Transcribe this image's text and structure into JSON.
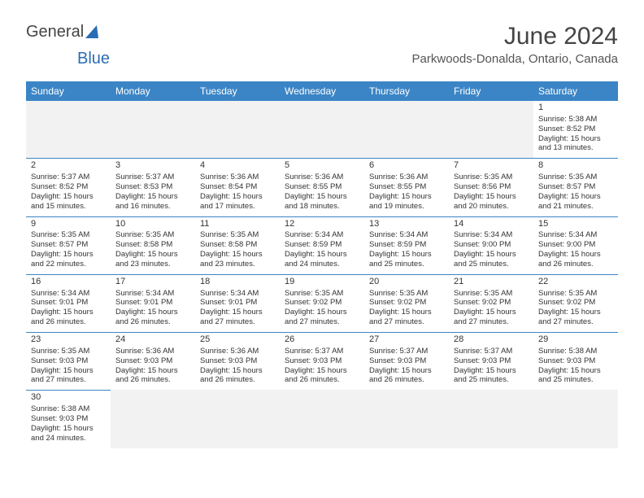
{
  "brand": {
    "part1": "General",
    "part2": "Blue"
  },
  "header": {
    "title": "June 2024",
    "location": "Parkwoods-Donalda, Ontario, Canada"
  },
  "colors": {
    "header_bg": "#3b85c6",
    "header_fg": "#ffffff",
    "rule": "#3b85c6",
    "text": "#333333",
    "empty_bg": "#f2f2f2",
    "page_bg": "#ffffff"
  },
  "weekdays": [
    "Sunday",
    "Monday",
    "Tuesday",
    "Wednesday",
    "Thursday",
    "Friday",
    "Saturday"
  ],
  "weeks": [
    [
      null,
      null,
      null,
      null,
      null,
      null,
      {
        "n": "1",
        "sr": "Sunrise: 5:38 AM",
        "ss": "Sunset: 8:52 PM",
        "d1": "Daylight: 15 hours",
        "d2": "and 13 minutes."
      }
    ],
    [
      {
        "n": "2",
        "sr": "Sunrise: 5:37 AM",
        "ss": "Sunset: 8:52 PM",
        "d1": "Daylight: 15 hours",
        "d2": "and 15 minutes."
      },
      {
        "n": "3",
        "sr": "Sunrise: 5:37 AM",
        "ss": "Sunset: 8:53 PM",
        "d1": "Daylight: 15 hours",
        "d2": "and 16 minutes."
      },
      {
        "n": "4",
        "sr": "Sunrise: 5:36 AM",
        "ss": "Sunset: 8:54 PM",
        "d1": "Daylight: 15 hours",
        "d2": "and 17 minutes."
      },
      {
        "n": "5",
        "sr": "Sunrise: 5:36 AM",
        "ss": "Sunset: 8:55 PM",
        "d1": "Daylight: 15 hours",
        "d2": "and 18 minutes."
      },
      {
        "n": "6",
        "sr": "Sunrise: 5:36 AM",
        "ss": "Sunset: 8:55 PM",
        "d1": "Daylight: 15 hours",
        "d2": "and 19 minutes."
      },
      {
        "n": "7",
        "sr": "Sunrise: 5:35 AM",
        "ss": "Sunset: 8:56 PM",
        "d1": "Daylight: 15 hours",
        "d2": "and 20 minutes."
      },
      {
        "n": "8",
        "sr": "Sunrise: 5:35 AM",
        "ss": "Sunset: 8:57 PM",
        "d1": "Daylight: 15 hours",
        "d2": "and 21 minutes."
      }
    ],
    [
      {
        "n": "9",
        "sr": "Sunrise: 5:35 AM",
        "ss": "Sunset: 8:57 PM",
        "d1": "Daylight: 15 hours",
        "d2": "and 22 minutes."
      },
      {
        "n": "10",
        "sr": "Sunrise: 5:35 AM",
        "ss": "Sunset: 8:58 PM",
        "d1": "Daylight: 15 hours",
        "d2": "and 23 minutes."
      },
      {
        "n": "11",
        "sr": "Sunrise: 5:35 AM",
        "ss": "Sunset: 8:58 PM",
        "d1": "Daylight: 15 hours",
        "d2": "and 23 minutes."
      },
      {
        "n": "12",
        "sr": "Sunrise: 5:34 AM",
        "ss": "Sunset: 8:59 PM",
        "d1": "Daylight: 15 hours",
        "d2": "and 24 minutes."
      },
      {
        "n": "13",
        "sr": "Sunrise: 5:34 AM",
        "ss": "Sunset: 8:59 PM",
        "d1": "Daylight: 15 hours",
        "d2": "and 25 minutes."
      },
      {
        "n": "14",
        "sr": "Sunrise: 5:34 AM",
        "ss": "Sunset: 9:00 PM",
        "d1": "Daylight: 15 hours",
        "d2": "and 25 minutes."
      },
      {
        "n": "15",
        "sr": "Sunrise: 5:34 AM",
        "ss": "Sunset: 9:00 PM",
        "d1": "Daylight: 15 hours",
        "d2": "and 26 minutes."
      }
    ],
    [
      {
        "n": "16",
        "sr": "Sunrise: 5:34 AM",
        "ss": "Sunset: 9:01 PM",
        "d1": "Daylight: 15 hours",
        "d2": "and 26 minutes."
      },
      {
        "n": "17",
        "sr": "Sunrise: 5:34 AM",
        "ss": "Sunset: 9:01 PM",
        "d1": "Daylight: 15 hours",
        "d2": "and 26 minutes."
      },
      {
        "n": "18",
        "sr": "Sunrise: 5:34 AM",
        "ss": "Sunset: 9:01 PM",
        "d1": "Daylight: 15 hours",
        "d2": "and 27 minutes."
      },
      {
        "n": "19",
        "sr": "Sunrise: 5:35 AM",
        "ss": "Sunset: 9:02 PM",
        "d1": "Daylight: 15 hours",
        "d2": "and 27 minutes."
      },
      {
        "n": "20",
        "sr": "Sunrise: 5:35 AM",
        "ss": "Sunset: 9:02 PM",
        "d1": "Daylight: 15 hours",
        "d2": "and 27 minutes."
      },
      {
        "n": "21",
        "sr": "Sunrise: 5:35 AM",
        "ss": "Sunset: 9:02 PM",
        "d1": "Daylight: 15 hours",
        "d2": "and 27 minutes."
      },
      {
        "n": "22",
        "sr": "Sunrise: 5:35 AM",
        "ss": "Sunset: 9:02 PM",
        "d1": "Daylight: 15 hours",
        "d2": "and 27 minutes."
      }
    ],
    [
      {
        "n": "23",
        "sr": "Sunrise: 5:35 AM",
        "ss": "Sunset: 9:03 PM",
        "d1": "Daylight: 15 hours",
        "d2": "and 27 minutes."
      },
      {
        "n": "24",
        "sr": "Sunrise: 5:36 AM",
        "ss": "Sunset: 9:03 PM",
        "d1": "Daylight: 15 hours",
        "d2": "and 26 minutes."
      },
      {
        "n": "25",
        "sr": "Sunrise: 5:36 AM",
        "ss": "Sunset: 9:03 PM",
        "d1": "Daylight: 15 hours",
        "d2": "and 26 minutes."
      },
      {
        "n": "26",
        "sr": "Sunrise: 5:37 AM",
        "ss": "Sunset: 9:03 PM",
        "d1": "Daylight: 15 hours",
        "d2": "and 26 minutes."
      },
      {
        "n": "27",
        "sr": "Sunrise: 5:37 AM",
        "ss": "Sunset: 9:03 PM",
        "d1": "Daylight: 15 hours",
        "d2": "and 26 minutes."
      },
      {
        "n": "28",
        "sr": "Sunrise: 5:37 AM",
        "ss": "Sunset: 9:03 PM",
        "d1": "Daylight: 15 hours",
        "d2": "and 25 minutes."
      },
      {
        "n": "29",
        "sr": "Sunrise: 5:38 AM",
        "ss": "Sunset: 9:03 PM",
        "d1": "Daylight: 15 hours",
        "d2": "and 25 minutes."
      }
    ],
    [
      {
        "n": "30",
        "sr": "Sunrise: 5:38 AM",
        "ss": "Sunset: 9:03 PM",
        "d1": "Daylight: 15 hours",
        "d2": "and 24 minutes."
      },
      null,
      null,
      null,
      null,
      null,
      null
    ]
  ]
}
